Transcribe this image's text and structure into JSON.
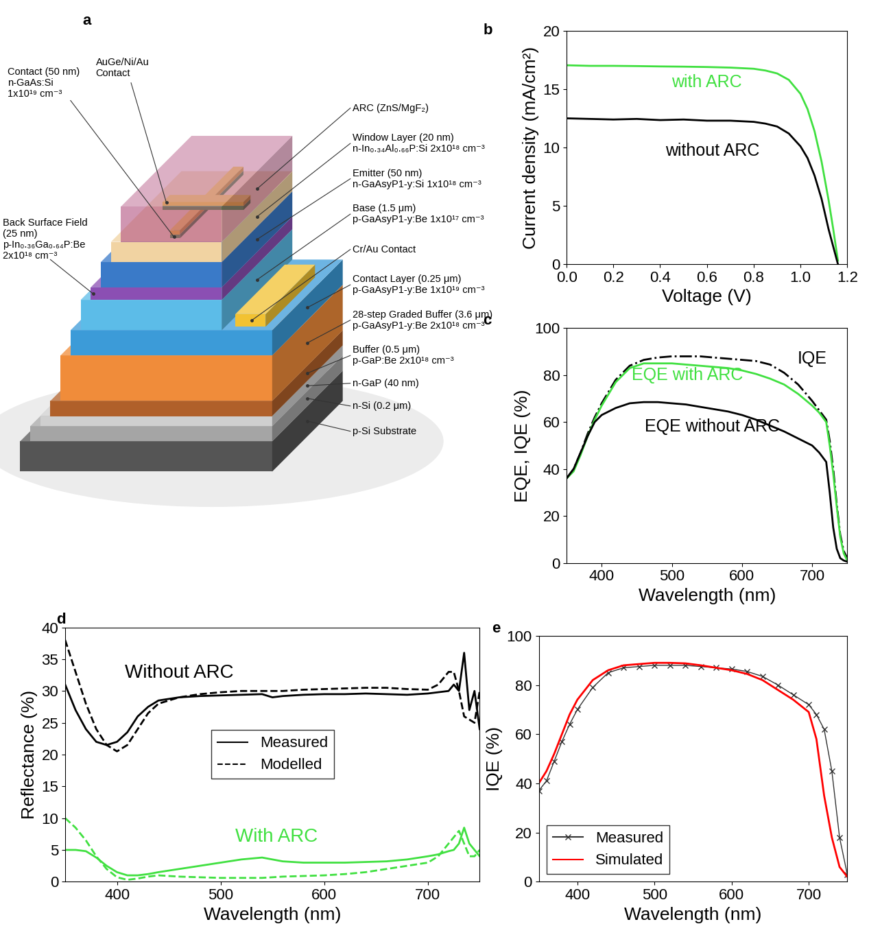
{
  "diagram": {
    "panel_label": "a",
    "left_labels": [
      "Contact (50 nm)\nn-GaAs:Si\n1x10¹⁹ cm⁻³",
      "AuGe/Ni/Au\nContact",
      "Back Surface Field\n(25 nm)\np-In₀.₃₆Ga₀.₆₄P:Be\n2x10¹⁸ cm⁻³"
    ],
    "right_labels": [
      "ARC (ZnS/MgF₂)",
      "Window Layer (20 nm)\nn-In₀.₃₄Al₀.₆₆P:Si 2x10¹⁸ cm⁻³",
      "Emitter (50 nm)\nn-GaAsyP1-y:Si 1x10¹⁸ cm⁻³",
      "Base (1.5 μm)\np-GaAsyP1-y:Be 1x10¹⁷ cm⁻³",
      "Cr/Au Contact",
      "Contact Layer (0.25 μm)\np-GaAsyP1-y:Be 1x10¹⁹ cm⁻³",
      "28-step Graded Buffer (3.6 μm)\np-GaAsyP1-y:Be 2x10¹⁸ cm⁻³",
      "Buffer (0.5 μm)\np-GaP:Be 2x10¹⁸ cm⁻³",
      "n-GaP (40 nm)",
      "n-Si (0.2 μm)",
      "p-Si Substrate"
    ]
  },
  "chart_data": [
    {
      "panel_label": "b",
      "type": "line",
      "xlabel": "Voltage (V)",
      "ylabel": "Current density (mA/cm²)",
      "x": [
        0,
        0.1,
        0.2,
        0.3,
        0.4,
        0.5,
        0.6,
        0.7,
        0.8,
        0.85,
        0.9,
        0.95,
        1.0,
        1.03,
        1.06,
        1.09,
        1.12,
        1.14,
        1.16
      ],
      "xlim": [
        0,
        1.2
      ],
      "xticks": [
        0.0,
        0.2,
        0.4,
        0.6,
        0.8,
        1.0,
        1.2
      ],
      "ylim": [
        0,
        20
      ],
      "yticks": [
        0,
        5,
        10,
        15,
        20
      ],
      "series": [
        {
          "name": "with ARC",
          "color": "#40e040",
          "line_style": "solid",
          "values": [
            17.05,
            17.0,
            17.0,
            16.98,
            16.95,
            16.93,
            16.9,
            16.85,
            16.75,
            16.6,
            16.35,
            15.8,
            14.6,
            13.3,
            11.4,
            8.8,
            5.5,
            3.0,
            0.3
          ]
        },
        {
          "name": "without ARC",
          "color": "#000000",
          "line_style": "solid",
          "values": [
            12.5,
            12.45,
            12.4,
            12.45,
            12.35,
            12.4,
            12.3,
            12.3,
            12.2,
            12.05,
            11.8,
            11.2,
            10.1,
            9.1,
            7.6,
            5.6,
            3.0,
            1.5,
            0.0
          ]
        }
      ]
    },
    {
      "panel_label": "c",
      "type": "line",
      "xlabel": "Wavelength (nm)",
      "ylabel": "EQE, IQE (%)",
      "x": [
        350,
        360,
        370,
        380,
        390,
        400,
        420,
        440,
        460,
        480,
        500,
        520,
        540,
        560,
        580,
        600,
        620,
        640,
        660,
        680,
        700,
        710,
        720,
        725,
        730,
        735,
        740,
        745,
        750
      ],
      "xlim": [
        350,
        750
      ],
      "xticks": [
        400,
        500,
        600,
        700
      ],
      "ylim": [
        0,
        100
      ],
      "yticks": [
        0,
        20,
        40,
        60,
        80,
        100
      ],
      "series": [
        {
          "name": "IQE",
          "color": "#000000",
          "line_style": "dashdot",
          "values": [
            36,
            40,
            47,
            55,
            62,
            68,
            78,
            84,
            86.5,
            87.5,
            88,
            88,
            88,
            87.5,
            87,
            86.5,
            86,
            84.5,
            81,
            76,
            69,
            65,
            61,
            52,
            40,
            25,
            12,
            5,
            2
          ]
        },
        {
          "name": "EQE with ARC",
          "color": "#40e040",
          "line_style": "solid",
          "values": [
            36,
            39,
            46,
            54,
            61,
            67,
            77,
            83,
            85,
            85,
            85,
            84.5,
            84,
            83.5,
            83,
            82,
            80.5,
            78.5,
            76,
            72,
            67,
            64,
            60,
            50,
            38,
            24,
            11,
            4,
            1
          ]
        },
        {
          "name": "EQE without ARC",
          "color": "#000000",
          "line_style": "solid",
          "values": [
            36,
            40,
            47,
            54,
            60,
            63,
            66,
            68,
            68.5,
            68.5,
            68,
            67.5,
            66.5,
            65.5,
            64.5,
            63,
            61,
            58.5,
            56,
            53,
            50,
            47,
            43,
            30,
            15,
            6,
            2,
            1,
            0.5
          ]
        }
      ]
    },
    {
      "panel_label": "d",
      "type": "line",
      "xlabel": "Wavelength (nm)",
      "ylabel": "Reflectance (%)",
      "x": [
        350,
        360,
        370,
        380,
        390,
        400,
        410,
        420,
        430,
        440,
        460,
        480,
        500,
        520,
        540,
        550,
        560,
        580,
        600,
        620,
        640,
        660,
        680,
        700,
        710,
        720,
        725,
        730,
        735,
        740,
        745,
        750
      ],
      "xlim": [
        350,
        750
      ],
      "xticks": [
        400,
        500,
        600,
        700
      ],
      "ylim": [
        0,
        40
      ],
      "yticks": [
        0,
        5,
        10,
        15,
        20,
        25,
        30,
        35,
        40
      ],
      "legend": "center",
      "annotations": [
        {
          "text": "Without ARC",
          "color": "#000000"
        },
        {
          "text": "With ARC",
          "color": "#40e040"
        }
      ],
      "series": [
        {
          "name": "Measured",
          "color": "#000000",
          "line_style": "solid",
          "values": [
            31,
            27,
            24,
            22,
            21.5,
            22,
            23.5,
            26,
            27.5,
            28.5,
            29,
            29.2,
            29.3,
            29.4,
            29.5,
            29,
            29.2,
            29.4,
            29.5,
            29.5,
            29.6,
            29.5,
            29.4,
            29.6,
            29.8,
            30,
            31,
            30,
            36,
            27,
            30,
            24
          ]
        },
        {
          "name": "Modelled",
          "color": "#000000",
          "line_style": "dashed",
          "values": [
            38,
            33,
            28,
            24,
            21.5,
            20.5,
            21.5,
            24,
            26.5,
            28,
            29,
            29.5,
            29.8,
            30,
            30,
            30,
            30,
            30.2,
            30.3,
            30.4,
            30.5,
            30.5,
            30.3,
            30.2,
            31,
            33,
            33,
            30,
            26,
            25.5,
            25,
            30
          ]
        },
        {
          "name": "Measured",
          "color": "#40e040",
          "line_style": "solid",
          "values": [
            5,
            5,
            4.8,
            3.8,
            2.5,
            1.5,
            1,
            1,
            1.2,
            1.5,
            2,
            2.5,
            3,
            3.5,
            3.8,
            3.5,
            3.2,
            3,
            3,
            3,
            3.1,
            3.2,
            3.5,
            4,
            4.3,
            4.8,
            5,
            6,
            8.5,
            6,
            5,
            4
          ]
        },
        {
          "name": "Modelled",
          "color": "#40e040",
          "line_style": "dashed",
          "values": [
            10,
            8.5,
            6.5,
            4,
            2,
            0.7,
            0.3,
            0.5,
            0.8,
            1,
            0.8,
            0.7,
            0.6,
            0.6,
            0.6,
            0.7,
            0.8,
            0.9,
            1,
            1.2,
            1.5,
            2,
            2.5,
            3,
            4,
            6,
            7,
            8,
            6,
            4,
            4,
            5
          ]
        }
      ]
    },
    {
      "panel_label": "e",
      "type": "line",
      "xlabel": "Wavelength (nm)",
      "ylabel": "IQE (%)",
      "x": [
        350,
        360,
        370,
        380,
        390,
        400,
        420,
        440,
        460,
        480,
        500,
        520,
        540,
        560,
        580,
        600,
        620,
        640,
        660,
        680,
        700,
        710,
        720,
        730,
        740,
        750
      ],
      "xlim": [
        350,
        750
      ],
      "xticks": [
        400,
        500,
        600,
        700
      ],
      "ylim": [
        0,
        100
      ],
      "yticks": [
        0,
        20,
        40,
        60,
        80,
        100
      ],
      "legend": "lower left",
      "series": [
        {
          "name": "Measured",
          "color": "#333333",
          "line_style": "solid",
          "marker": "x",
          "values": [
            37,
            41,
            49,
            57,
            64,
            70,
            79,
            85,
            87,
            87.5,
            88,
            88,
            88,
            87.5,
            87,
            86.5,
            85.5,
            83.5,
            80,
            76,
            72,
            68,
            62,
            45,
            18,
            3
          ]
        },
        {
          "name": "Simulated",
          "color": "#ff0000",
          "line_style": "solid",
          "values": [
            40,
            45,
            52,
            60,
            68,
            74,
            82,
            86,
            88,
            88.5,
            89,
            89,
            88.8,
            88,
            87,
            86,
            84.5,
            82,
            78,
            74,
            69,
            58,
            35,
            18,
            6,
            2
          ]
        }
      ]
    }
  ]
}
